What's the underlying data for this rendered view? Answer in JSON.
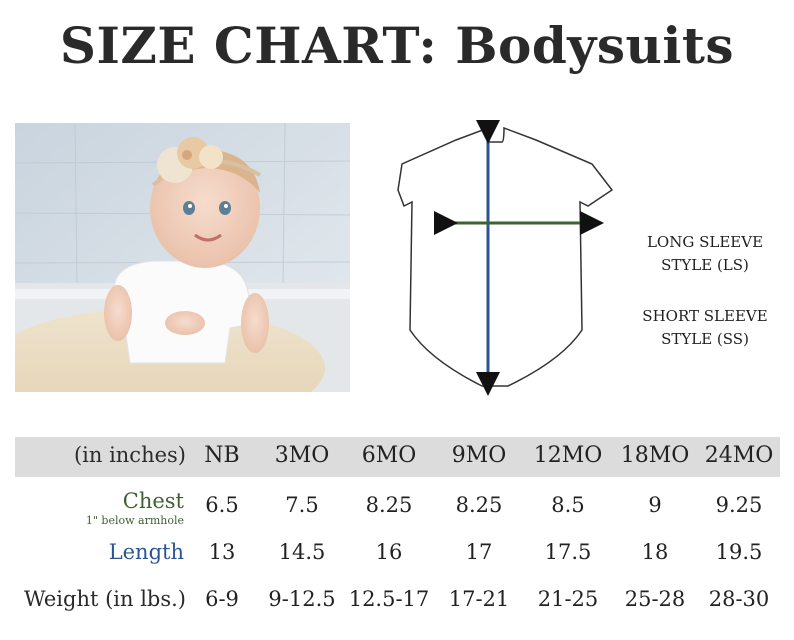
{
  "title": "SIZE CHART: Bodysuits",
  "style_labels": {
    "long_sleeve": [
      "LONG SLEEVE",
      "STYLE (LS)"
    ],
    "short_sleeve": [
      "SHORT SLEEVE",
      "STYLE (SS)"
    ]
  },
  "colors": {
    "header_band": "#dcdcdc",
    "chest": "#3d6233",
    "length": "#2b5592",
    "text": "#2a2a2a"
  },
  "table": {
    "unit_header": "(in inches)",
    "sizes": [
      "NB",
      "3MO",
      "6MO",
      "9MO",
      "12MO",
      "18MO",
      "24MO"
    ],
    "rows": {
      "chest": {
        "label": "Chest",
        "sublabel": "1\" below armhole",
        "values": [
          "6.5",
          "7.5",
          "8.25",
          "8.25",
          "8.5",
          "9",
          "9.25"
        ]
      },
      "length": {
        "label": "Length",
        "values": [
          "13",
          "14.5",
          "16",
          "17",
          "17.5",
          "18",
          "19.5"
        ]
      },
      "weight": {
        "label": "Weight (in lbs.)",
        "values": [
          "6-9",
          "9-12.5",
          "12.5-17",
          "17-21",
          "21-25",
          "25-28",
          "28-30"
        ]
      }
    }
  }
}
